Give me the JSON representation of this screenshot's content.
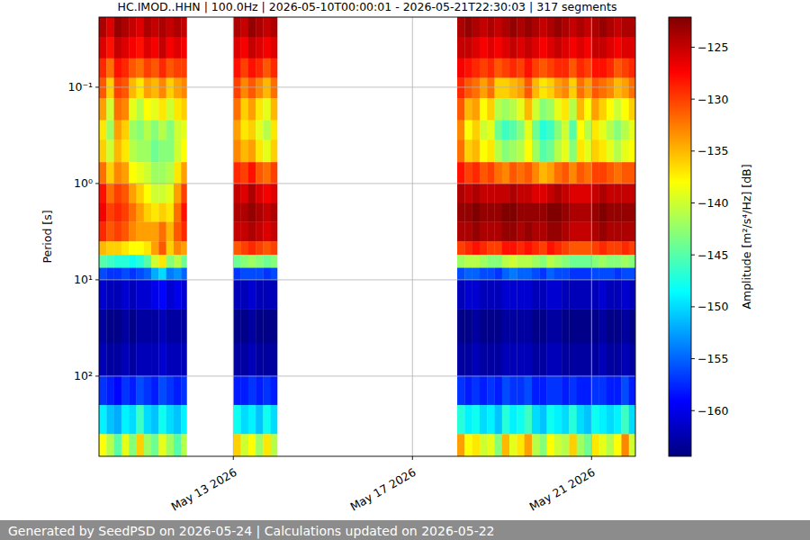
{
  "chart_data": {
    "type": "heatmap",
    "title": "HC.IMOD..HHN | 100.0Hz | 2026-05-10T00:00:01 - 2026-05-21T22:30:03 | 317 segments",
    "y_label": "Period [s]",
    "footer": "Generated by SeedPSD on 2026-05-24 | Calculations updated on 2026-05-22",
    "log": "y",
    "grid": true,
    "xlim": [
      "2026-05-10T00:00",
      "2026-05-21T23:30"
    ],
    "xticks": [
      {
        "value": "2026-05-13T00:00",
        "label": "May 13 2026"
      },
      {
        "value": "2026-05-17T00:00",
        "label": "May 17 2026"
      },
      {
        "value": "2026-05-21T00:00",
        "label": "May 21 2026"
      }
    ],
    "ylim": [
      680,
      0.0187
    ],
    "yticks": [
      {
        "value": 0.1,
        "label": "10⁻¹"
      },
      {
        "value": 1,
        "label": "10⁰"
      },
      {
        "value": 10,
        "label": "10¹"
      },
      {
        "value": 100,
        "label": "10²"
      }
    ],
    "period_edges": [
      0.0187,
      0.03,
      0.05,
      0.08,
      0.13,
      0.22,
      0.35,
      0.6,
      1,
      1.6,
      2.5,
      4,
      5.5,
      7.5,
      10,
      20,
      45,
      100,
      200,
      400,
      680
    ],
    "colorbar": {
      "label": "Amplitude [m²/s⁴/Hz] [dB]",
      "range": [
        -164.4,
        -122.1
      ],
      "ticks": [
        -125,
        -130,
        -135,
        -140,
        -145,
        -150,
        -155,
        -160
      ]
    },
    "columns": [
      {
        "start": "2026-05-10T00:00",
        "end": "2026-05-10T04:00",
        "values": [
          -124,
          -126,
          -129,
          -131,
          -134,
          -137,
          -136,
          -132,
          -128,
          -127,
          -129,
          -135,
          -145,
          -156,
          -161,
          -163,
          -162,
          -157,
          -149,
          -138
        ]
      },
      {
        "start": "2026-05-10T04:00",
        "end": "2026-05-10T08:00",
        "values": [
          -126,
          -128,
          -132,
          -136,
          -140,
          -142,
          -140,
          -136,
          -132,
          -130,
          -131,
          -136,
          -146,
          -157,
          -162,
          -164,
          -163,
          -158,
          -151,
          -141
        ]
      },
      {
        "start": "2026-05-10T08:00",
        "end": "2026-05-10T12:00",
        "values": [
          -123,
          -125,
          -128,
          -130,
          -132,
          -134,
          -135,
          -133,
          -130,
          -129,
          -130,
          -136,
          -147,
          -157,
          -162,
          -164,
          -163,
          -159,
          -152,
          -145
        ]
      },
      {
        "start": "2026-05-10T12:00",
        "end": "2026-05-10T16:00",
        "values": [
          -124,
          -126,
          -129,
          -131,
          -133,
          -136,
          -137,
          -134,
          -131,
          -130,
          -131,
          -137,
          -147,
          -156,
          -161,
          -163,
          -162,
          -157,
          -149,
          -139
        ]
      },
      {
        "start": "2026-05-10T16:00",
        "end": "2026-05-10T20:00",
        "values": [
          -125,
          -127,
          -131,
          -135,
          -139,
          -142,
          -141,
          -138,
          -134,
          -132,
          -133,
          -138,
          -148,
          -157,
          -162,
          -164,
          -163,
          -158,
          -150,
          -143
        ]
      },
      {
        "start": "2026-05-10T20:00",
        "end": "2026-05-11T00:00",
        "values": [
          -126,
          -128,
          -132,
          -137,
          -141,
          -143,
          -142,
          -139,
          -136,
          -134,
          -134,
          -138,
          -147,
          -156,
          -161,
          -163,
          -162,
          -156,
          -146,
          -136
        ]
      },
      {
        "start": "2026-05-11T00:00",
        "end": "2026-05-11T04:00",
        "values": [
          -124,
          -126,
          -130,
          -134,
          -138,
          -141,
          -142,
          -140,
          -138,
          -136,
          -134,
          -137,
          -145,
          -155,
          -161,
          -163,
          -162,
          -157,
          -150,
          -142
        ]
      },
      {
        "start": "2026-05-11T04:00",
        "end": "2026-05-11T08:00",
        "values": [
          -125,
          -127,
          -131,
          -135,
          -139,
          -143,
          -144,
          -142,
          -140,
          -137,
          -134,
          -134,
          -140,
          -152,
          -160,
          -163,
          -162,
          -158,
          -151,
          -144
        ]
      },
      {
        "start": "2026-05-11T08:00",
        "end": "2026-05-11T12:00",
        "values": [
          -124,
          -125,
          -129,
          -133,
          -137,
          -141,
          -143,
          -142,
          -140,
          -136,
          -132,
          -131,
          -137,
          -150,
          -159,
          -162,
          -161,
          -156,
          -148,
          -139
        ]
      },
      {
        "start": "2026-05-11T12:00",
        "end": "2026-05-11T16:00",
        "values": [
          -125,
          -127,
          -131,
          -136,
          -140,
          -143,
          -143,
          -141,
          -139,
          -137,
          -135,
          -136,
          -143,
          -154,
          -161,
          -163,
          -162,
          -157,
          -150,
          -142
        ]
      },
      {
        "start": "2026-05-11T16:00",
        "end": "2026-05-11T20:00",
        "values": [
          -124,
          -126,
          -130,
          -134,
          -137,
          -140,
          -140,
          -137,
          -134,
          -132,
          -131,
          -133,
          -141,
          -153,
          -160,
          -163,
          -162,
          -158,
          -151,
          -145
        ]
      },
      {
        "start": "2026-05-11T20:00",
        "end": "2026-05-11T23:00",
        "values": [
          -125,
          -127,
          -130,
          -133,
          -136,
          -139,
          -138,
          -134,
          -130,
          -128,
          -129,
          -134,
          -144,
          -155,
          -161,
          -163,
          -162,
          -157,
          -149,
          -141
        ]
      },
      {
        "start": "2026-05-13T00:00",
        "end": "2026-05-13T04:00",
        "values": [
          -124,
          -126,
          -128,
          -130,
          -132,
          -134,
          -133,
          -129,
          -125,
          -124,
          -125,
          -131,
          -144,
          -157,
          -162,
          -164,
          -163,
          -158,
          -148,
          -136
        ]
      },
      {
        "start": "2026-05-13T04:00",
        "end": "2026-05-13T08:00",
        "values": [
          -125,
          -127,
          -130,
          -133,
          -136,
          -137,
          -135,
          -130,
          -126,
          -124,
          -125,
          -130,
          -143,
          -156,
          -162,
          -164,
          -163,
          -158,
          -150,
          -140
        ]
      },
      {
        "start": "2026-05-13T08:00",
        "end": "2026-05-13T12:00",
        "values": [
          -123,
          -125,
          -128,
          -131,
          -134,
          -136,
          -134,
          -128,
          -124,
          -123,
          -124,
          -129,
          -142,
          -156,
          -161,
          -163,
          -162,
          -157,
          -149,
          -138
        ]
      },
      {
        "start": "2026-05-13T12:00",
        "end": "2026-05-13T16:00",
        "values": [
          -124,
          -126,
          -129,
          -133,
          -137,
          -139,
          -137,
          -131,
          -126,
          -124,
          -125,
          -130,
          -143,
          -156,
          -162,
          -164,
          -163,
          -158,
          -151,
          -142
        ]
      },
      {
        "start": "2026-05-13T16:00",
        "end": "2026-05-13T20:00",
        "values": [
          -125,
          -127,
          -131,
          -135,
          -139,
          -141,
          -139,
          -132,
          -127,
          -125,
          -126,
          -131,
          -144,
          -157,
          -162,
          -164,
          -163,
          -157,
          -148,
          -137
        ]
      },
      {
        "start": "2026-05-13T20:00",
        "end": "2026-05-13T23:30",
        "values": [
          -124,
          -126,
          -129,
          -132,
          -135,
          -137,
          -136,
          -130,
          -126,
          -124,
          -125,
          -130,
          -143,
          -156,
          -162,
          -164,
          -163,
          -158,
          -150,
          -141
        ]
      },
      {
        "start": "2026-05-18T00:00",
        "end": "2026-05-18T04:00",
        "values": [
          -124,
          -125,
          -127,
          -129,
          -131,
          -133,
          -132,
          -128,
          -124,
          -123,
          -124,
          -130,
          -142,
          -156,
          -162,
          -164,
          -163,
          -157,
          -147,
          -134
        ]
      },
      {
        "start": "2026-05-18T04:00",
        "end": "2026-05-18T08:00",
        "values": [
          -123,
          -125,
          -128,
          -131,
          -135,
          -138,
          -136,
          -130,
          -125,
          -123,
          -124,
          -129,
          -141,
          -155,
          -161,
          -164,
          -163,
          -158,
          -149,
          -138
        ]
      },
      {
        "start": "2026-05-18T08:00",
        "end": "2026-05-18T12:00",
        "values": [
          -124,
          -126,
          -129,
          -132,
          -134,
          -136,
          -135,
          -129,
          -124,
          -122,
          -123,
          -128,
          -141,
          -155,
          -161,
          -163,
          -162,
          -157,
          -148,
          -137
        ]
      },
      {
        "start": "2026-05-18T12:00",
        "end": "2026-05-18T16:00",
        "values": [
          -125,
          -127,
          -130,
          -134,
          -138,
          -140,
          -138,
          -131,
          -125,
          -123,
          -124,
          -129,
          -142,
          -156,
          -162,
          -164,
          -163,
          -158,
          -150,
          -140
        ]
      },
      {
        "start": "2026-05-18T16:00",
        "end": "2026-05-18T20:00",
        "values": [
          -124,
          -126,
          -129,
          -132,
          -136,
          -139,
          -137,
          -130,
          -125,
          -123,
          -124,
          -130,
          -143,
          -156,
          -162,
          -164,
          -163,
          -157,
          -149,
          -139
        ]
      },
      {
        "start": "2026-05-18T20:00",
        "end": "2026-05-19T00:00",
        "values": [
          -125,
          -127,
          -131,
          -136,
          -141,
          -144,
          -141,
          -132,
          -125,
          -123,
          -124,
          -130,
          -143,
          -157,
          -162,
          -164,
          -163,
          -158,
          -151,
          -143
        ]
      },
      {
        "start": "2026-05-19T00:00",
        "end": "2026-05-19T04:00",
        "values": [
          -124,
          -126,
          -130,
          -136,
          -142,
          -146,
          -143,
          -133,
          -125,
          -122,
          -123,
          -128,
          -141,
          -155,
          -161,
          -163,
          -162,
          -156,
          -147,
          -135
        ]
      },
      {
        "start": "2026-05-19T04:00",
        "end": "2026-05-19T08:00",
        "values": [
          -123,
          -125,
          -129,
          -135,
          -141,
          -145,
          -142,
          -131,
          -124,
          -122,
          -123,
          -128,
          -140,
          -154,
          -161,
          -163,
          -162,
          -157,
          -149,
          -139
        ]
      },
      {
        "start": "2026-05-19T08:00",
        "end": "2026-05-19T12:00",
        "values": [
          -124,
          -126,
          -130,
          -134,
          -139,
          -143,
          -141,
          -132,
          -125,
          -123,
          -124,
          -129,
          -141,
          -155,
          -161,
          -163,
          -162,
          -157,
          -148,
          -137
        ]
      },
      {
        "start": "2026-05-19T12:00",
        "end": "2026-05-19T16:00",
        "values": [
          -123,
          -125,
          -128,
          -131,
          -135,
          -139,
          -138,
          -131,
          -125,
          -123,
          -123,
          -128,
          -141,
          -155,
          -161,
          -163,
          -162,
          -156,
          -146,
          -134
        ]
      },
      {
        "start": "2026-05-19T16:00",
        "end": "2026-05-19T20:00",
        "values": [
          -124,
          -126,
          -130,
          -135,
          -140,
          -144,
          -142,
          -133,
          -126,
          -123,
          -124,
          -129,
          -142,
          -156,
          -162,
          -164,
          -163,
          -158,
          -150,
          -141
        ]
      },
      {
        "start": "2026-05-19T20:00",
        "end": "2026-05-20T00:00",
        "values": [
          -125,
          -127,
          -131,
          -137,
          -143,
          -147,
          -145,
          -135,
          -126,
          -123,
          -124,
          -130,
          -143,
          -157,
          -162,
          -164,
          -163,
          -158,
          -151,
          -143
        ]
      },
      {
        "start": "2026-05-20T00:00",
        "end": "2026-05-20T04:00",
        "values": [
          -124,
          -126,
          -130,
          -136,
          -142,
          -146,
          -144,
          -134,
          -125,
          -122,
          -123,
          -128,
          -141,
          -155,
          -161,
          -163,
          -162,
          -157,
          -148,
          -138
        ]
      },
      {
        "start": "2026-05-20T04:00",
        "end": "2026-05-20T08:00",
        "values": [
          -123,
          -125,
          -129,
          -134,
          -139,
          -143,
          -141,
          -132,
          -124,
          -122,
          -123,
          -129,
          -142,
          -156,
          -161,
          -163,
          -162,
          -157,
          -149,
          -140
        ]
      },
      {
        "start": "2026-05-20T08:00",
        "end": "2026-05-20T12:00",
        "values": [
          -124,
          -126,
          -129,
          -133,
          -137,
          -140,
          -139,
          -131,
          -125,
          -123,
          -124,
          -130,
          -143,
          -156,
          -162,
          -164,
          -163,
          -158,
          -150,
          -141
        ]
      },
      {
        "start": "2026-05-20T12:00",
        "end": "2026-05-20T16:00",
        "values": [
          -125,
          -127,
          -131,
          -136,
          -141,
          -145,
          -143,
          -133,
          -126,
          -124,
          -125,
          -131,
          -144,
          -157,
          -162,
          -164,
          -163,
          -157,
          -147,
          -136
        ]
      },
      {
        "start": "2026-05-20T16:00",
        "end": "2026-05-20T20:00",
        "values": [
          -124,
          -126,
          -129,
          -132,
          -135,
          -138,
          -137,
          -131,
          -126,
          -124,
          -125,
          -131,
          -144,
          -157,
          -162,
          -164,
          -163,
          -158,
          -150,
          -142
        ]
      },
      {
        "start": "2026-05-20T20:00",
        "end": "2026-05-21T00:00",
        "values": [
          -125,
          -127,
          -130,
          -134,
          -138,
          -141,
          -139,
          -132,
          -126,
          -124,
          -125,
          -131,
          -144,
          -157,
          -162,
          -164,
          -163,
          -158,
          -151,
          -144
        ]
      },
      {
        "start": "2026-05-21T00:00",
        "end": "2026-05-21T04:00",
        "values": [
          -124,
          -125,
          -128,
          -131,
          -134,
          -137,
          -136,
          -130,
          -125,
          -123,
          -124,
          -130,
          -143,
          -156,
          -162,
          -164,
          -163,
          -157,
          -148,
          -137
        ]
      },
      {
        "start": "2026-05-21T04:00",
        "end": "2026-05-21T08:00",
        "values": [
          -123,
          -125,
          -128,
          -132,
          -136,
          -139,
          -137,
          -130,
          -124,
          -122,
          -123,
          -129,
          -142,
          -156,
          -161,
          -163,
          -162,
          -157,
          -149,
          -139
        ]
      },
      {
        "start": "2026-05-21T08:00",
        "end": "2026-05-21T12:00",
        "values": [
          -124,
          -126,
          -129,
          -133,
          -138,
          -141,
          -139,
          -131,
          -125,
          -123,
          -124,
          -130,
          -143,
          -156,
          -162,
          -164,
          -163,
          -158,
          -150,
          -141
        ]
      },
      {
        "start": "2026-05-21T12:00",
        "end": "2026-05-21T16:00",
        "values": [
          -125,
          -127,
          -131,
          -135,
          -140,
          -143,
          -141,
          -132,
          -125,
          -123,
          -124,
          -130,
          -143,
          -157,
          -162,
          -164,
          -163,
          -158,
          -149,
          -138
        ]
      },
      {
        "start": "2026-05-21T16:00",
        "end": "2026-05-21T20:00",
        "values": [
          -124,
          -126,
          -130,
          -134,
          -138,
          -141,
          -139,
          -131,
          -125,
          -123,
          -124,
          -129,
          -142,
          -156,
          -161,
          -163,
          -162,
          -156,
          -146,
          -133
        ]
      },
      {
        "start": "2026-05-21T20:00",
        "end": "2026-05-21T23:30",
        "values": [
          -124,
          -126,
          -129,
          -132,
          -136,
          -139,
          -138,
          -131,
          -125,
          -123,
          -124,
          -130,
          -143,
          -156,
          -162,
          -164,
          -163,
          -158,
          -150,
          -140
        ]
      }
    ]
  }
}
